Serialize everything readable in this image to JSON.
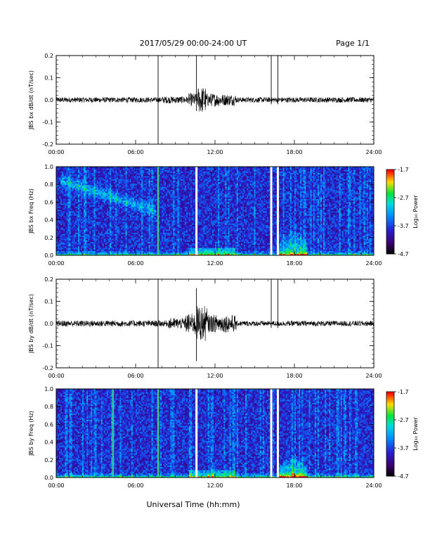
{
  "header": {
    "title": "2017/05/29  00:00-24:00 UT",
    "page": "Page 1/1"
  },
  "xlabel": "Universal Time (hh:mm)",
  "chart_data": [
    {
      "type": "line",
      "ylabel": "JBS bx dB/dt (nT/sec)",
      "xlim": [
        0,
        24
      ],
      "ylim": [
        -0.2,
        0.2
      ],
      "yticks": [
        "-0.2",
        "-0.1",
        "0.0",
        "0.1",
        "0.2"
      ],
      "xticks": [
        "00:00",
        "06:00",
        "12:00",
        "18:00",
        "24:00"
      ],
      "noise": [
        {
          "t0": 0,
          "t1": 8.0,
          "amp": 0.012
        },
        {
          "t0": 8.0,
          "t1": 10.0,
          "amp": 0.016
        },
        {
          "t0": 10.0,
          "t1": 10.7,
          "amp": 0.03
        },
        {
          "t0": 10.7,
          "t1": 11.3,
          "amp": 0.06
        },
        {
          "t0": 11.3,
          "t1": 12.3,
          "amp": 0.03
        },
        {
          "t0": 12.3,
          "t1": 13.6,
          "amp": 0.026
        },
        {
          "t0": 13.6,
          "t1": 24,
          "amp": 0.012
        }
      ],
      "spikes": [
        {
          "t": 7.7,
          "lo": -0.21,
          "hi": 0.21
        },
        {
          "t": 10.6,
          "lo": -0.05,
          "hi": 0.21
        },
        {
          "t": 16.25,
          "lo": -0.02,
          "hi": 0.21
        },
        {
          "t": 16.75,
          "lo": -0.02,
          "hi": 0.21
        }
      ]
    },
    {
      "type": "heatmap",
      "ylabel": "JBS bx Freq (Hz)",
      "xlim": [
        0,
        24
      ],
      "ylim": [
        0,
        1.0
      ],
      "yticks": [
        "0.0",
        "0.2",
        "0.4",
        "0.6",
        "0.8",
        "1.0"
      ],
      "xticks": [
        "00:00",
        "06:00",
        "12:00",
        "18:00",
        "24:00"
      ],
      "colorbar_label": "Log₁₀ Power",
      "colorbar_ticks": [
        "-1.7",
        "-2.7",
        "-3.7",
        "-4.7"
      ],
      "zlim": [
        -4.7,
        -1.7
      ],
      "gaps": [
        10.6,
        16.25,
        16.75
      ],
      "bright_lines": [
        7.7
      ],
      "features": [
        {
          "t0": 0.3,
          "t1": 7.5,
          "f0": 0.85,
          "f1": 0.5,
          "boost": 0.9
        },
        {
          "t0": 16.8,
          "t1": 19.0,
          "f0": 0.0,
          "f1": 0.28,
          "boost": 0.8
        }
      ]
    },
    {
      "type": "line",
      "ylabel": "JBS by dB/dt (nT/sec)",
      "xlim": [
        0,
        24
      ],
      "ylim": [
        -0.2,
        0.2
      ],
      "yticks": [
        "-0.2",
        "-0.1",
        "0.0",
        "0.1",
        "0.2"
      ],
      "xticks": [
        "00:00",
        "06:00",
        "12:00",
        "18:00",
        "24:00"
      ],
      "noise": [
        {
          "t0": 0,
          "t1": 8.5,
          "amp": 0.014
        },
        {
          "t0": 8.5,
          "t1": 9.8,
          "amp": 0.025
        },
        {
          "t0": 9.8,
          "t1": 10.5,
          "amp": 0.045
        },
        {
          "t0": 10.5,
          "t1": 11.4,
          "amp": 0.08
        },
        {
          "t0": 11.4,
          "t1": 13.6,
          "amp": 0.04
        },
        {
          "t0": 13.6,
          "t1": 24,
          "amp": 0.012
        }
      ],
      "spikes": [
        {
          "t": 7.7,
          "lo": -0.21,
          "hi": 0.21
        },
        {
          "t": 10.6,
          "lo": -0.17,
          "hi": 0.16
        },
        {
          "t": 16.25,
          "lo": -0.02,
          "hi": 0.21
        },
        {
          "t": 16.75,
          "lo": -0.02,
          "hi": 0.21
        }
      ]
    },
    {
      "type": "heatmap",
      "ylabel": "JBS by Freq (Hz)",
      "xlim": [
        0,
        24
      ],
      "ylim": [
        0,
        1.0
      ],
      "yticks": [
        "0.0",
        "0.2",
        "0.4",
        "0.6",
        "0.8",
        "1.0"
      ],
      "xticks": [
        "00:00",
        "06:00",
        "12:00",
        "18:00",
        "24:00"
      ],
      "colorbar_label": "Log₁₀ Power",
      "colorbar_ticks": [
        "-1.7",
        "-2.7",
        "-3.7",
        "-4.7"
      ],
      "zlim": [
        -4.7,
        -1.7
      ],
      "gaps": [
        10.6,
        16.25,
        16.75
      ],
      "bright_lines": [
        4.3,
        7.7
      ],
      "features": [
        {
          "t0": 16.8,
          "t1": 19.0,
          "f0": 0.0,
          "f1": 0.25,
          "boost": 1.0
        }
      ]
    }
  ]
}
